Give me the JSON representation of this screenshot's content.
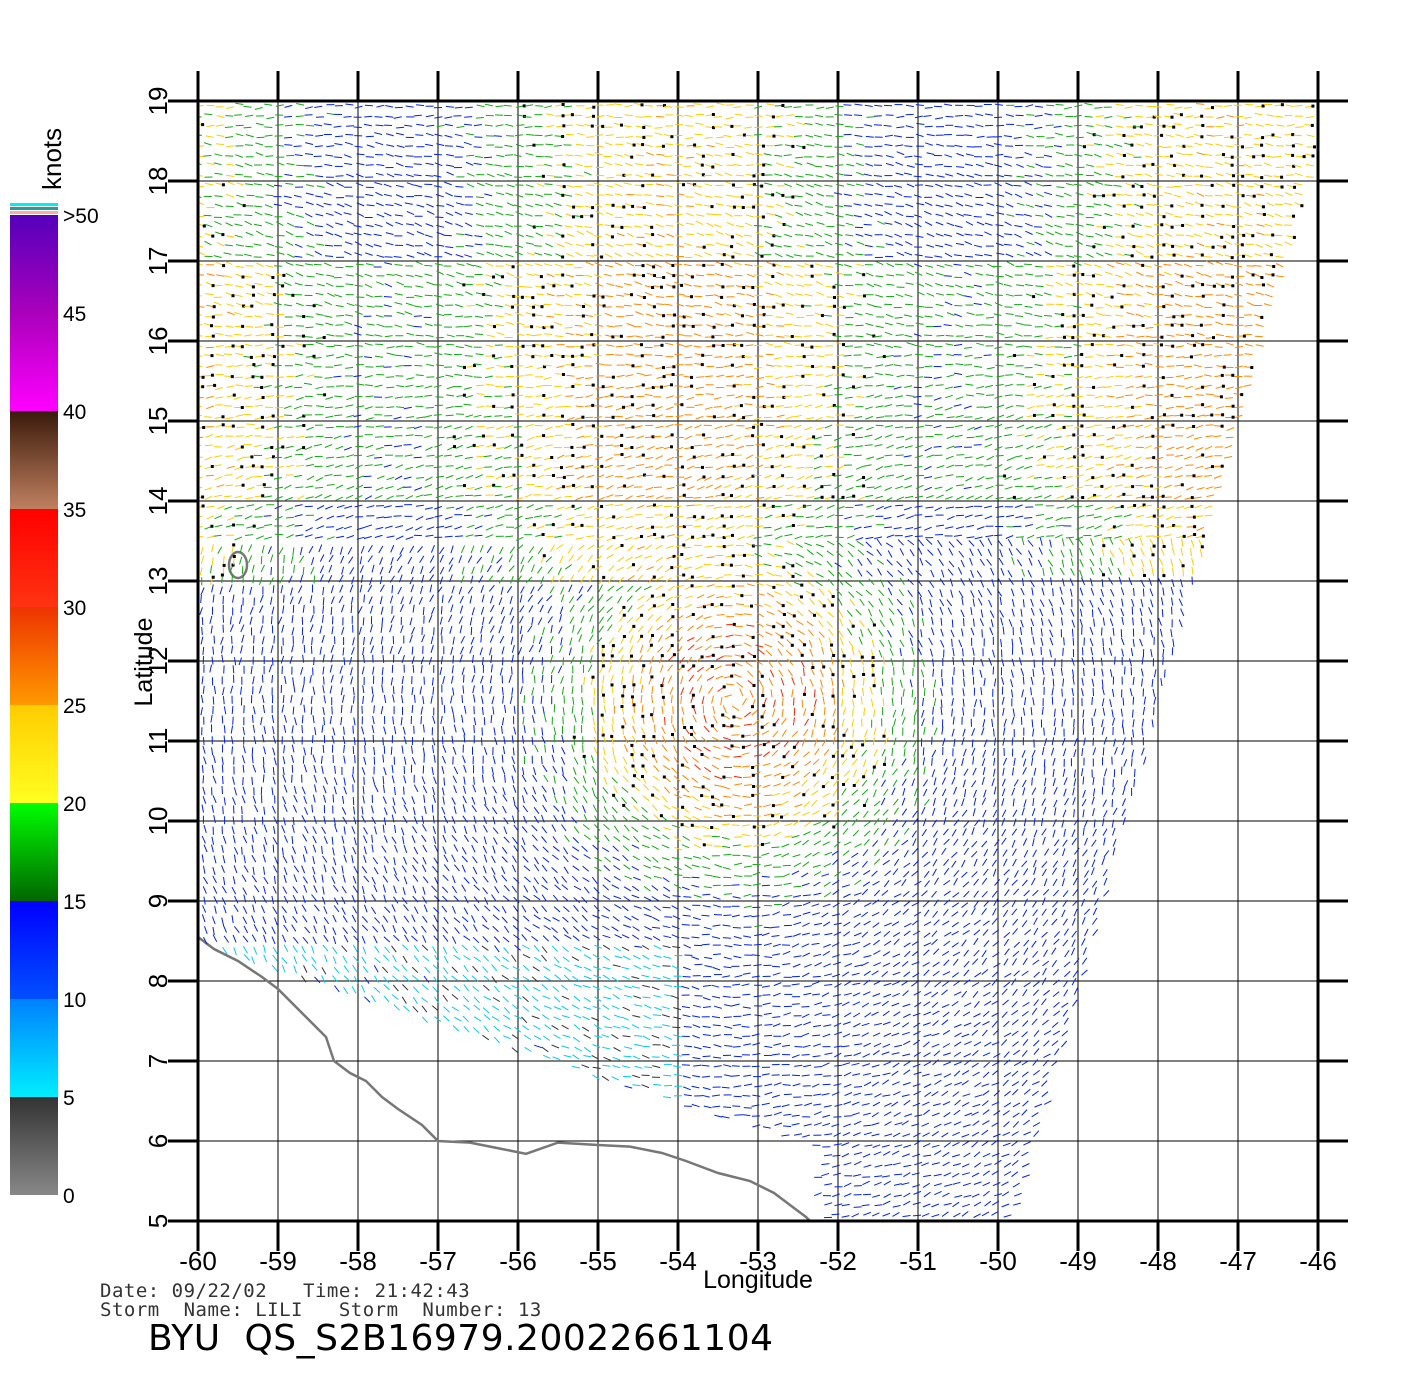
{
  "map": {
    "xlabel": "Longitude",
    "ylabel": "Latitude",
    "lon_range": [
      -60,
      -46
    ],
    "lat_range": [
      5,
      19
    ],
    "lon_ticks": [
      "-60",
      "-59",
      "-58",
      "-57",
      "-56",
      "-55",
      "-54",
      "-53",
      "-52",
      "-51",
      "-50",
      "-49",
      "-48",
      "-47",
      "-46"
    ],
    "lat_ticks": [
      "5",
      "6",
      "7",
      "8",
      "9",
      "10",
      "11",
      "12",
      "13",
      "14",
      "15",
      "16",
      "17",
      "18",
      "19"
    ],
    "grid": true,
    "coastline_color": "#777777",
    "background": "#ffffff"
  },
  "colorbar": {
    "unit_label": "knots",
    "tick_labels": [
      "0",
      "5",
      "10",
      "15",
      "20",
      "25",
      "30",
      "35",
      "40",
      "45",
      ">50"
    ],
    "bands": [
      {
        "from": 0,
        "to": 5,
        "top": "#333333",
        "bottom": "#888888"
      },
      {
        "from": 5,
        "to": 10,
        "top": "#0080ff",
        "bottom": "#00eeff"
      },
      {
        "from": 10,
        "to": 15,
        "top": "#0000ff",
        "bottom": "#0050ff"
      },
      {
        "from": 15,
        "to": 20,
        "top": "#00ff00",
        "bottom": "#006600"
      },
      {
        "from": 20,
        "to": 25,
        "top": "#ffcc00",
        "bottom": "#ffff22"
      },
      {
        "from": 25,
        "to": 30,
        "top": "#ee3300",
        "bottom": "#ff9900"
      },
      {
        "from": 30,
        "to": 35,
        "top": "#ff0000",
        "bottom": "#ff3311"
      },
      {
        "from": 35,
        "to": 40,
        "top": "#3a1a0a",
        "bottom": "#c08060"
      },
      {
        "from": 40,
        "to": 45,
        "top": "#aa00bb",
        "bottom": "#ff00ff"
      },
      {
        "from": 45,
        "to": 50,
        "top": "#5500bb",
        "bottom": "#aa00bb"
      }
    ],
    "overflow_colors": [
      "#ffaaaa",
      "#2a9a9a",
      "#00eeee"
    ]
  },
  "wind_colors": {
    "calm": "#333333",
    "5-10": "#00ccee",
    "10-15": "#0022ee",
    "15-20": "#11aa11",
    "20-25": "#ffcc00",
    "25-30": "#ff8800",
    "30-35": "#ff2200",
    "35-40": "#884422",
    "rain_flag": "#000000"
  },
  "info": {
    "date_label": "Date:",
    "date": "09/22/02",
    "time_label": "Time:",
    "time": "21:42:43",
    "storm_name_label": "Storm  Name:",
    "storm_name": "LILI",
    "storm_number_label": "Storm  Number:",
    "storm_number": "13",
    "file_id": "BYU  QS_S2B16979.20022661104"
  }
}
